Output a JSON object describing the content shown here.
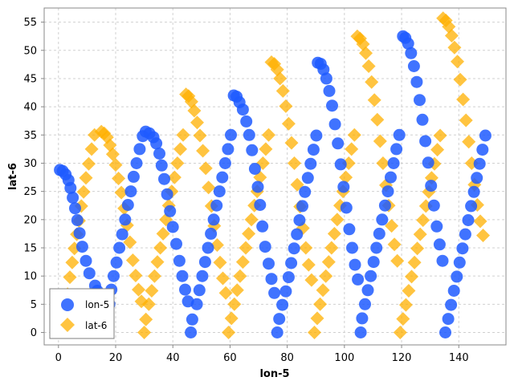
{
  "chart_data": {
    "type": "scatter",
    "xlabel": "lon-5",
    "ylabel": "lat-6",
    "xlim": [
      -5,
      156.5
    ],
    "ylim": [
      -2.2,
      57.5
    ],
    "x_ticks": [
      0,
      20,
      40,
      60,
      80,
      100,
      120,
      140
    ],
    "y_ticks": [
      0,
      5,
      10,
      15,
      20,
      25,
      30,
      35,
      40,
      45,
      50,
      55
    ],
    "grid": true,
    "legend_position": "bottom-left",
    "colors": {
      "lon-5": "#1f5bff",
      "lat-6": "#ffb000"
    },
    "series": [
      {
        "name": "lon-5",
        "marker": "circle",
        "points": [
          [
            0.5,
            28.8
          ],
          [
            1.5,
            28.6
          ],
          [
            2.5,
            28.0
          ],
          [
            3.5,
            27.0
          ],
          [
            4.2,
            25.6
          ],
          [
            5.0,
            23.9
          ],
          [
            5.8,
            22.0
          ],
          [
            6.6,
            19.9
          ],
          [
            7.4,
            17.6
          ],
          [
            8.3,
            15.2
          ],
          [
            9.6,
            12.7
          ],
          [
            10.8,
            10.5
          ],
          [
            12.8,
            8.3
          ],
          [
            13.6,
            7.4
          ],
          [
            14.8,
            3.5
          ],
          [
            17.8,
            5.0
          ],
          [
            18.5,
            7.6
          ],
          [
            19.3,
            10.0
          ],
          [
            20.3,
            12.4
          ],
          [
            21.3,
            15.0
          ],
          [
            22.3,
            17.4
          ],
          [
            23.3,
            20.0
          ],
          [
            24.3,
            22.6
          ],
          [
            25.3,
            25.0
          ],
          [
            26.3,
            27.6
          ],
          [
            27.3,
            30.0
          ],
          [
            28.4,
            32.5
          ],
          [
            29.5,
            34.8
          ],
          [
            30.5,
            35.6
          ],
          [
            31.8,
            35.3
          ],
          [
            33.2,
            34.6
          ],
          [
            34.2,
            33.5
          ],
          [
            35.3,
            31.7
          ],
          [
            36.1,
            29.6
          ],
          [
            37.0,
            27.2
          ],
          [
            38.0,
            24.5
          ],
          [
            39.0,
            21.5
          ],
          [
            40.0,
            18.7
          ],
          [
            41.2,
            15.7
          ],
          [
            42.3,
            12.7
          ],
          [
            43.3,
            10.0
          ],
          [
            44.3,
            7.6
          ],
          [
            45.3,
            5.5
          ],
          [
            46.3,
            0.0
          ],
          [
            46.8,
            2.3
          ],
          [
            48.4,
            5.0
          ],
          [
            49.3,
            7.5
          ],
          [
            50.3,
            10.0
          ],
          [
            51.3,
            12.5
          ],
          [
            52.3,
            15.0
          ],
          [
            53.3,
            17.5
          ],
          [
            54.3,
            20.0
          ],
          [
            55.3,
            22.5
          ],
          [
            56.3,
            25.0
          ],
          [
            57.3,
            27.5
          ],
          [
            58.3,
            30.0
          ],
          [
            59.3,
            32.5
          ],
          [
            60.3,
            35.0
          ],
          [
            61.3,
            42.0
          ],
          [
            62.3,
            41.8
          ],
          [
            63.3,
            40.8
          ],
          [
            64.5,
            39.5
          ],
          [
            65.7,
            37.4
          ],
          [
            66.7,
            35.0
          ],
          [
            67.7,
            32.3
          ],
          [
            68.7,
            29.0
          ],
          [
            69.7,
            25.8
          ],
          [
            70.5,
            22.6
          ],
          [
            71.3,
            18.8
          ],
          [
            72.3,
            15.2
          ],
          [
            73.5,
            12.2
          ],
          [
            74.5,
            9.5
          ],
          [
            75.5,
            7.0
          ],
          [
            76.5,
            0.0
          ],
          [
            77.2,
            2.4
          ],
          [
            78.3,
            4.9
          ],
          [
            79.5,
            7.3
          ],
          [
            80.5,
            9.8
          ],
          [
            81.4,
            12.3
          ],
          [
            82.4,
            14.9
          ],
          [
            83.4,
            17.4
          ],
          [
            84.3,
            19.9
          ],
          [
            85.3,
            22.4
          ],
          [
            86.2,
            24.9
          ],
          [
            87.2,
            27.4
          ],
          [
            88.2,
            29.9
          ],
          [
            89.2,
            32.4
          ],
          [
            90.2,
            34.9
          ],
          [
            90.7,
            47.8
          ],
          [
            91.7,
            47.6
          ],
          [
            92.7,
            46.6
          ],
          [
            93.7,
            45.0
          ],
          [
            94.7,
            42.8
          ],
          [
            95.7,
            40.2
          ],
          [
            96.7,
            36.9
          ],
          [
            97.7,
            33.5
          ],
          [
            98.7,
            29.8
          ],
          [
            99.7,
            25.8
          ],
          [
            100.7,
            22.1
          ],
          [
            101.7,
            18.3
          ],
          [
            102.7,
            15.0
          ],
          [
            103.7,
            12.0
          ],
          [
            104.7,
            9.4
          ],
          [
            105.7,
            0.0
          ],
          [
            106.2,
            2.5
          ],
          [
            107.2,
            5.0
          ],
          [
            108.2,
            7.5
          ],
          [
            109.2,
            10.0
          ],
          [
            110.2,
            12.5
          ],
          [
            111.2,
            15.0
          ],
          [
            112.2,
            17.5
          ],
          [
            113.2,
            20.0
          ],
          [
            114.2,
            22.5
          ],
          [
            115.2,
            25.0
          ],
          [
            116.2,
            27.5
          ],
          [
            117.2,
            30.0
          ],
          [
            118.2,
            32.5
          ],
          [
            119.2,
            35.0
          ],
          [
            120.5,
            52.5
          ],
          [
            121.3,
            52.2
          ],
          [
            122.3,
            51.2
          ],
          [
            123.3,
            49.5
          ],
          [
            124.3,
            47.2
          ],
          [
            125.3,
            44.4
          ],
          [
            126.3,
            41.2
          ],
          [
            127.3,
            37.7
          ],
          [
            128.3,
            33.9
          ],
          [
            129.3,
            30.1
          ],
          [
            130.3,
            26.0
          ],
          [
            131.3,
            22.5
          ],
          [
            132.3,
            18.8
          ],
          [
            133.3,
            15.6
          ],
          [
            134.3,
            12.7
          ],
          [
            135.3,
            0.0
          ],
          [
            136.3,
            2.4
          ],
          [
            137.3,
            4.9
          ],
          [
            138.3,
            7.4
          ],
          [
            139.3,
            9.9
          ],
          [
            140.3,
            12.4
          ],
          [
            141.3,
            14.9
          ],
          [
            142.3,
            17.4
          ],
          [
            143.3,
            19.9
          ],
          [
            144.3,
            22.4
          ],
          [
            145.3,
            24.9
          ],
          [
            146.3,
            27.4
          ],
          [
            147.3,
            29.9
          ],
          [
            148.3,
            32.4
          ],
          [
            149.3,
            34.9
          ]
        ]
      },
      {
        "name": "lat-6",
        "marker": "diamond",
        "points": [
          [
            2.4,
            5.8
          ],
          [
            3.2,
            6.8
          ],
          [
            4.0,
            9.8
          ],
          [
            4.8,
            12.4
          ],
          [
            5.6,
            14.9
          ],
          [
            6.4,
            17.4
          ],
          [
            7.2,
            19.8
          ],
          [
            8.0,
            22.4
          ],
          [
            8.8,
            24.9
          ],
          [
            9.6,
            27.4
          ],
          [
            10.6,
            29.9
          ],
          [
            11.6,
            32.5
          ],
          [
            12.6,
            35.0
          ],
          [
            15.0,
            35.6
          ],
          [
            16.0,
            35.3
          ],
          [
            17.0,
            34.6
          ],
          [
            18.0,
            33.2
          ],
          [
            19.0,
            31.6
          ],
          [
            20.0,
            29.7
          ],
          [
            21.0,
            27.3
          ],
          [
            22.0,
            24.8
          ],
          [
            23.0,
            22.0
          ],
          [
            24.0,
            19.0
          ],
          [
            25.0,
            16.0
          ],
          [
            26.0,
            12.8
          ],
          [
            27.0,
            10.1
          ],
          [
            28.0,
            7.6
          ],
          [
            29.0,
            5.5
          ],
          [
            30.0,
            0.0
          ],
          [
            30.6,
            2.3
          ],
          [
            31.6,
            5.0
          ],
          [
            32.6,
            7.4
          ],
          [
            33.6,
            10.0
          ],
          [
            34.6,
            12.5
          ],
          [
            35.6,
            15.0
          ],
          [
            36.6,
            17.5
          ],
          [
            37.6,
            20.0
          ],
          [
            38.6,
            22.5
          ],
          [
            39.6,
            25.0
          ],
          [
            40.6,
            27.5
          ],
          [
            41.6,
            30.0
          ],
          [
            42.6,
            32.5
          ],
          [
            43.6,
            35.0
          ],
          [
            44.6,
            42.2
          ],
          [
            45.5,
            41.9
          ],
          [
            46.5,
            40.9
          ],
          [
            47.5,
            39.3
          ],
          [
            48.5,
            37.2
          ],
          [
            49.5,
            34.9
          ],
          [
            50.5,
            32.2
          ],
          [
            51.5,
            29.1
          ],
          [
            52.5,
            25.7
          ],
          [
            53.5,
            22.4
          ],
          [
            54.5,
            18.9
          ],
          [
            55.5,
            15.5
          ],
          [
            56.5,
            12.4
          ],
          [
            57.5,
            9.6
          ],
          [
            58.5,
            7.0
          ],
          [
            59.5,
            0.0
          ],
          [
            60.5,
            2.5
          ],
          [
            61.5,
            5.0
          ],
          [
            62.5,
            7.5
          ],
          [
            63.5,
            10.0
          ],
          [
            64.5,
            12.5
          ],
          [
            65.5,
            15.0
          ],
          [
            66.5,
            17.5
          ],
          [
            67.5,
            20.0
          ],
          [
            68.5,
            22.5
          ],
          [
            69.5,
            25.0
          ],
          [
            70.5,
            27.5
          ],
          [
            71.5,
            30.0
          ],
          [
            72.5,
            32.5
          ],
          [
            73.5,
            35.0
          ],
          [
            74.5,
            47.9
          ],
          [
            75.5,
            47.6
          ],
          [
            76.5,
            46.6
          ],
          [
            77.5,
            45.0
          ],
          [
            78.5,
            42.8
          ],
          [
            79.5,
            40.1
          ],
          [
            80.5,
            37.0
          ],
          [
            81.5,
            33.6
          ],
          [
            82.5,
            30.0
          ],
          [
            83.5,
            26.2
          ],
          [
            84.5,
            22.3
          ],
          [
            85.5,
            18.5
          ],
          [
            86.5,
            15.0
          ],
          [
            87.5,
            12.0
          ],
          [
            88.5,
            9.3
          ],
          [
            89.5,
            0.0
          ],
          [
            90.5,
            2.5
          ],
          [
            91.5,
            5.0
          ],
          [
            92.5,
            7.5
          ],
          [
            93.5,
            10.0
          ],
          [
            94.5,
            12.5
          ],
          [
            95.5,
            15.0
          ],
          [
            96.5,
            17.5
          ],
          [
            97.5,
            20.0
          ],
          [
            98.5,
            22.5
          ],
          [
            99.5,
            25.0
          ],
          [
            100.5,
            27.5
          ],
          [
            101.5,
            30.0
          ],
          [
            102.5,
            32.5
          ],
          [
            103.5,
            35.0
          ],
          [
            104.5,
            52.5
          ],
          [
            105.5,
            52.1
          ],
          [
            106.5,
            51.1
          ],
          [
            107.5,
            49.5
          ],
          [
            108.5,
            47.2
          ],
          [
            109.5,
            44.4
          ],
          [
            110.5,
            41.2
          ],
          [
            111.5,
            37.7
          ],
          [
            112.5,
            33.9
          ],
          [
            113.5,
            30.0
          ],
          [
            114.5,
            26.1
          ],
          [
            115.5,
            22.5
          ],
          [
            116.5,
            18.9
          ],
          [
            117.5,
            15.6
          ],
          [
            118.5,
            12.7
          ],
          [
            119.5,
            0.0
          ],
          [
            120.5,
            2.4
          ],
          [
            121.5,
            4.9
          ],
          [
            122.5,
            7.4
          ],
          [
            123.5,
            9.9
          ],
          [
            124.5,
            12.4
          ],
          [
            125.5,
            14.9
          ],
          [
            126.5,
            17.4
          ],
          [
            127.5,
            19.9
          ],
          [
            128.5,
            22.4
          ],
          [
            129.5,
            24.9
          ],
          [
            130.5,
            27.4
          ],
          [
            131.5,
            29.9
          ],
          [
            132.5,
            32.4
          ],
          [
            133.5,
            34.9
          ],
          [
            134.5,
            55.7
          ],
          [
            135.5,
            55.3
          ],
          [
            136.5,
            54.2
          ],
          [
            137.5,
            52.6
          ],
          [
            138.5,
            50.5
          ],
          [
            139.5,
            48.0
          ],
          [
            140.5,
            44.8
          ],
          [
            141.5,
            41.3
          ],
          [
            142.5,
            37.6
          ],
          [
            143.5,
            33.8
          ],
          [
            144.5,
            30.0
          ],
          [
            145.5,
            26.2
          ],
          [
            146.5,
            22.6
          ],
          [
            147.5,
            19.7
          ],
          [
            148.5,
            17.2
          ]
        ]
      }
    ]
  }
}
